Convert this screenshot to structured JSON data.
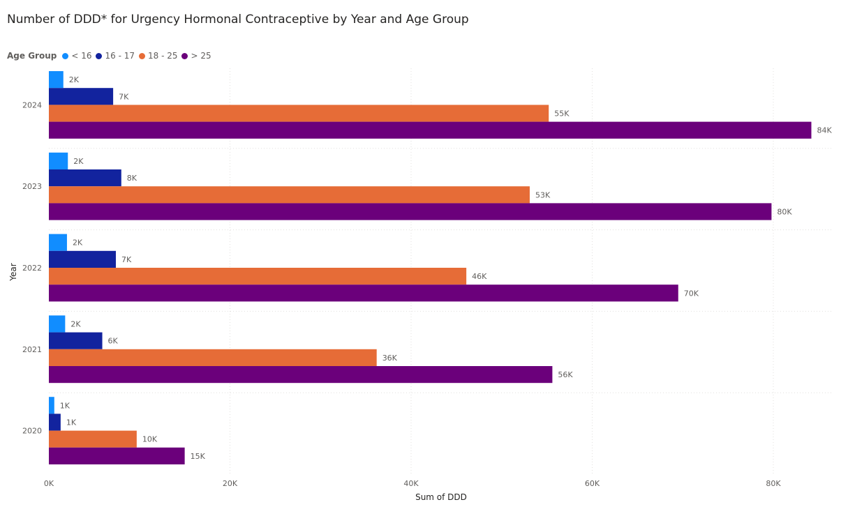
{
  "chart_data": {
    "type": "bar",
    "orientation": "horizontal",
    "title": "Number of DDD* for Urgency Hormonal Contraceptive by Year and Age Group",
    "xlabel": "Sum of DDD",
    "ylabel": "Year",
    "legend_title": "Age Group",
    "legend_position": "top-left",
    "xlim": [
      0,
      86000
    ],
    "xticks": [
      0,
      20000,
      40000,
      60000,
      80000
    ],
    "xtick_labels": [
      "0K",
      "20K",
      "40K",
      "60K",
      "80K"
    ],
    "grid": true,
    "categories": [
      "2024",
      "2023",
      "2022",
      "2021",
      "2020"
    ],
    "series": [
      {
        "name": "< 16",
        "color": "#118DFF",
        "values": [
          1600,
          2100,
          2000,
          1800,
          600
        ],
        "labels": [
          "2K",
          "2K",
          "2K",
          "2K",
          "1K"
        ]
      },
      {
        "name": "16 - 17",
        "color": "#12239E",
        "values": [
          7100,
          8000,
          7400,
          5900,
          1300
        ],
        "labels": [
          "7K",
          "8K",
          "7K",
          "6K",
          "1K"
        ]
      },
      {
        "name": "18 - 25",
        "color": "#E66C37",
        "values": [
          55200,
          53100,
          46100,
          36200,
          9700
        ],
        "labels": [
          "55K",
          "53K",
          "46K",
          "36K",
          "10K"
        ]
      },
      {
        "name": "> 25",
        "color": "#6B007B",
        "values": [
          84200,
          79800,
          69500,
          55600,
          15000
        ],
        "labels": [
          "84K",
          "80K",
          "70K",
          "56K",
          "15K"
        ]
      }
    ]
  }
}
